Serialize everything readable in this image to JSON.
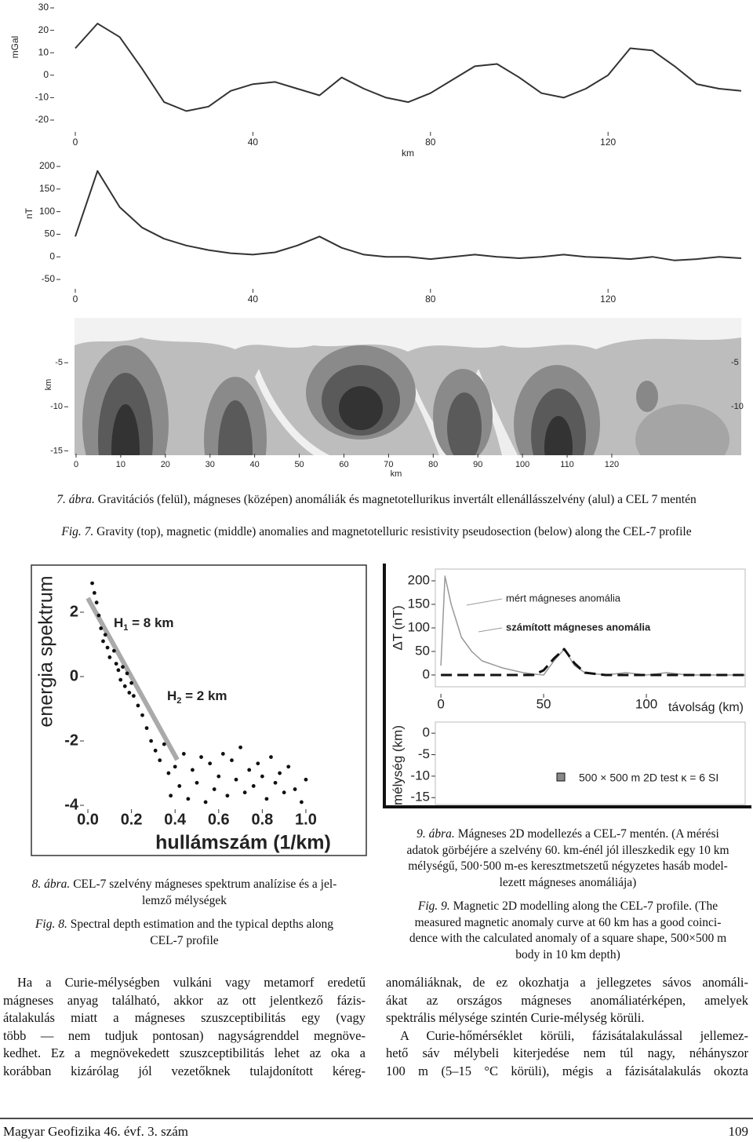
{
  "chart_data": [
    {
      "type": "line",
      "y_label": "mGal",
      "x_label": "km",
      "x": [
        0,
        5,
        10,
        15,
        20,
        25,
        30,
        35,
        40,
        45,
        50,
        55,
        60,
        65,
        70,
        75,
        80,
        85,
        90,
        95,
        100,
        105,
        110,
        115,
        120,
        125,
        130,
        135,
        140,
        145,
        150
      ],
      "values": [
        12,
        23,
        17,
        3,
        -12,
        -16,
        -14,
        -7,
        -4,
        -3,
        -6,
        -9,
        -1,
        -6,
        -10,
        -12,
        -8,
        -2,
        4,
        5,
        -1,
        -8,
        -10,
        -6,
        0,
        12,
        11,
        4,
        -4,
        -6,
        -7
      ],
      "color": "#333",
      "xlim": [
        0,
        150
      ],
      "ylim": [
        -22,
        32
      ],
      "xticks": [
        0,
        40,
        80,
        120
      ],
      "yticks": [
        30,
        20,
        10,
        0,
        -10,
        -20
      ]
    },
    {
      "type": "line",
      "y_label": "nT",
      "x": [
        0,
        5,
        10,
        15,
        20,
        25,
        30,
        35,
        40,
        45,
        50,
        55,
        60,
        65,
        70,
        75,
        80,
        85,
        90,
        95,
        100,
        105,
        110,
        115,
        120,
        125,
        130,
        135,
        140,
        145,
        150
      ],
      "values": [
        45,
        190,
        110,
        65,
        40,
        25,
        15,
        8,
        5,
        10,
        25,
        45,
        20,
        5,
        0,
        0,
        -5,
        0,
        5,
        0,
        -3,
        0,
        5,
        0,
        -2,
        -5,
        0,
        -8,
        -5,
        0,
        -3
      ],
      "color": "#333",
      "xlim": [
        0,
        150
      ],
      "ylim": [
        -60,
        215
      ],
      "xticks": [
        0,
        40,
        80,
        120
      ],
      "yticks": [
        200,
        150,
        100,
        50,
        0,
        -50
      ]
    },
    {
      "type": "contour",
      "y_label": "km",
      "x_label": "km",
      "xlim": [
        0,
        149
      ],
      "ylim": [
        -15.5,
        0
      ],
      "xticks": [
        0,
        10,
        20,
        30,
        40,
        50,
        60,
        70,
        80,
        90,
        100,
        110,
        120
      ],
      "yticks": [
        -5,
        -10,
        -15
      ]
    },
    {
      "type": "scatter",
      "y_label": "energia spektrum",
      "x_label": "hullámszám (1/km)",
      "annotations": [
        {
          "text": "H",
          "sub": "1",
          "rest": " = 8 km"
        },
        {
          "text": "H",
          "sub": "2",
          "rest": " = 2 km"
        }
      ],
      "x": [
        0.02,
        0.03,
        0.04,
        0.05,
        0.06,
        0.07,
        0.08,
        0.09,
        0.1,
        0.12,
        0.13,
        0.14,
        0.15,
        0.16,
        0.17,
        0.18,
        0.19,
        0.2,
        0.21,
        0.23,
        0.25,
        0.27,
        0.29,
        0.31,
        0.33,
        0.35,
        0.37,
        0.38,
        0.4,
        0.42,
        0.44,
        0.46,
        0.48,
        0.5,
        0.52,
        0.54,
        0.56,
        0.58,
        0.6,
        0.62,
        0.64,
        0.66,
        0.68,
        0.7,
        0.72,
        0.74,
        0.76,
        0.78,
        0.8,
        0.82,
        0.84,
        0.86,
        0.88,
        0.9,
        0.92,
        0.95,
        0.98,
        1.0
      ],
      "values": [
        2.9,
        2.6,
        2.3,
        1.9,
        1.5,
        1.1,
        1.3,
        0.9,
        0.6,
        0.8,
        0.4,
        0.2,
        -0.1,
        0.3,
        -0.3,
        0.1,
        -0.5,
        -0.2,
        -0.6,
        -0.9,
        -1.2,
        -1.6,
        -2,
        -2.3,
        -2.6,
        -2.1,
        -3,
        -3.7,
        -2.8,
        -3.4,
        -2.4,
        -3.8,
        -2.9,
        -3.3,
        -2.5,
        -3.9,
        -2.7,
        -3.5,
        -3.1,
        -2.4,
        -3.7,
        -2.6,
        -3.2,
        -2.2,
        -3.6,
        -2.9,
        -3.4,
        -2.7,
        -3.1,
        -3.8,
        -2.5,
        -3.3,
        -3,
        -3.6,
        -2.8,
        -3.5,
        -3.9,
        -3.2
      ],
      "color": "#111",
      "xlim": [
        -0.04,
        1.08
      ],
      "ylim": [
        -4.35,
        3.2
      ],
      "xticks": [
        {
          "value": 0,
          "label": "0.0"
        },
        0.2,
        0.4,
        0.6,
        0.8,
        {
          "value": 1,
          "label": "1.0"
        }
      ],
      "yticks": [
        2,
        0,
        -2,
        -4
      ]
    },
    {
      "type": "line",
      "y_label": "ΔT (nT)",
      "x_label": "távolság (km)",
      "x": [
        0,
        2,
        5,
        10,
        15,
        20,
        30,
        40,
        45,
        50,
        55,
        60,
        65,
        70,
        80,
        90,
        100,
        110,
        120,
        130,
        140,
        148
      ],
      "series": [
        {
          "name": "mért mágneses anomália",
          "color": "#999",
          "dash": false,
          "values": [
            20,
            210,
            150,
            80,
            50,
            30,
            15,
            5,
            2,
            0,
            30,
            55,
            20,
            5,
            0,
            5,
            0,
            5,
            0,
            0,
            0,
            0
          ]
        },
        {
          "name": "számított mágneses anomália",
          "color": "#111",
          "dash": true,
          "values": [
            0,
            0,
            0,
            0,
            0,
            0,
            0,
            0,
            0,
            10,
            35,
            55,
            25,
            5,
            0,
            0,
            0,
            0,
            0,
            0,
            0,
            0
          ]
        }
      ],
      "xlim": [
        -2.7,
        148
      ],
      "ylim": [
        -21.7,
        220
      ],
      "xticks": [
        0,
        50,
        100
      ],
      "yticks": [
        200,
        150,
        100,
        50,
        0
      ]
    },
    {
      "type": "model",
      "y_label": "mélység (km)",
      "legend": "500 × 500 m 2D test κ = 6 SI",
      "xlim": [
        -2.7,
        148
      ],
      "ylim": [
        -16.6,
        1.6
      ],
      "yticks": [
        0,
        -5,
        -10,
        -15
      ]
    }
  ],
  "captions": {
    "fig7_hu": {
      "label": "7. ábra.",
      "text": " Gravitációs (felül), mágneses (középen) anomáliák és magnetotellurikus invertált ellenállásszelvény (alul) a CEL 7 mentén"
    },
    "fig7_en": {
      "label": "Fig. 7.",
      "text": " Gravity (top), magnetic (middle) anomalies and magnetotelluric resistivity pseudosection (below) along the CEL-7 profile"
    },
    "fig8_hu": {
      "label": "8. ábra.",
      "lines": [
        " CEL-7 szelvény mágneses spektrum analízise és a jel-",
        "lemző mélységek"
      ]
    },
    "fig8_en": {
      "label": "Fig. 8.",
      "lines": [
        " Spectral depth estimation and the typical depths along",
        "CEL-7 profile"
      ]
    },
    "fig9_hu": {
      "label": "9. ábra.",
      "lines": [
        " Mágneses 2D modellezés a CEL-7 mentén. (A mérési",
        "adatok görbéjére a szelvény 60. km-énél jól illeszkedik egy 10 km",
        "mélységű, 500·500 m-es keresztmetszetű négyzetes hasáb model-",
        "lezett mágneses anomáliája)"
      ]
    },
    "fig9_en": {
      "label": "Fig. 9.",
      "lines": [
        " Magnetic 2D modelling along the CEL-7 profile. (The",
        "measured magnetic anomaly curve at 60 km has a good coinci-",
        "dence with the calculated anomaly of a square shape, 500×500 m",
        "body in 10 km depth)"
      ]
    }
  },
  "body": {
    "left": [
      "Ha a Curie-mélységben vulkáni vagy metamorf eredetű",
      "mágneses anyag található, akkor az ott jelentkező fázis-",
      "átalakulás miatt a mágneses szuszceptibilitás egy (vagy",
      "több — nem tudjuk pontosan) nagyságrenddel megnöve-",
      "kedhet. Ez a megnövekedett szuszceptibilitás lehet az oka a",
      "korábban kizárólag jól vezetőknek tulajdonított kéreg-"
    ],
    "right_p1": [
      "anomáliáknak, de ez okozhatja a jellegzetes sávos anomáli-",
      "ákat az országos mágneses anomáliatérképen, amelyek",
      "spektrális mélysége szintén Curie-mélység körüli."
    ],
    "right_p2": [
      "A Curie-hőmérséklet körüli, fázisátalakulással jellemez-",
      "hető sáv mélybeli kiterjedése nem túl nagy, néhányszor",
      "100 m (5–15 °C körüli), mégis a fázisátalakulás okozta"
    ]
  },
  "footer": {
    "journal": "Magyar Geofizika 46. évf. 3. szám",
    "page": "109"
  }
}
